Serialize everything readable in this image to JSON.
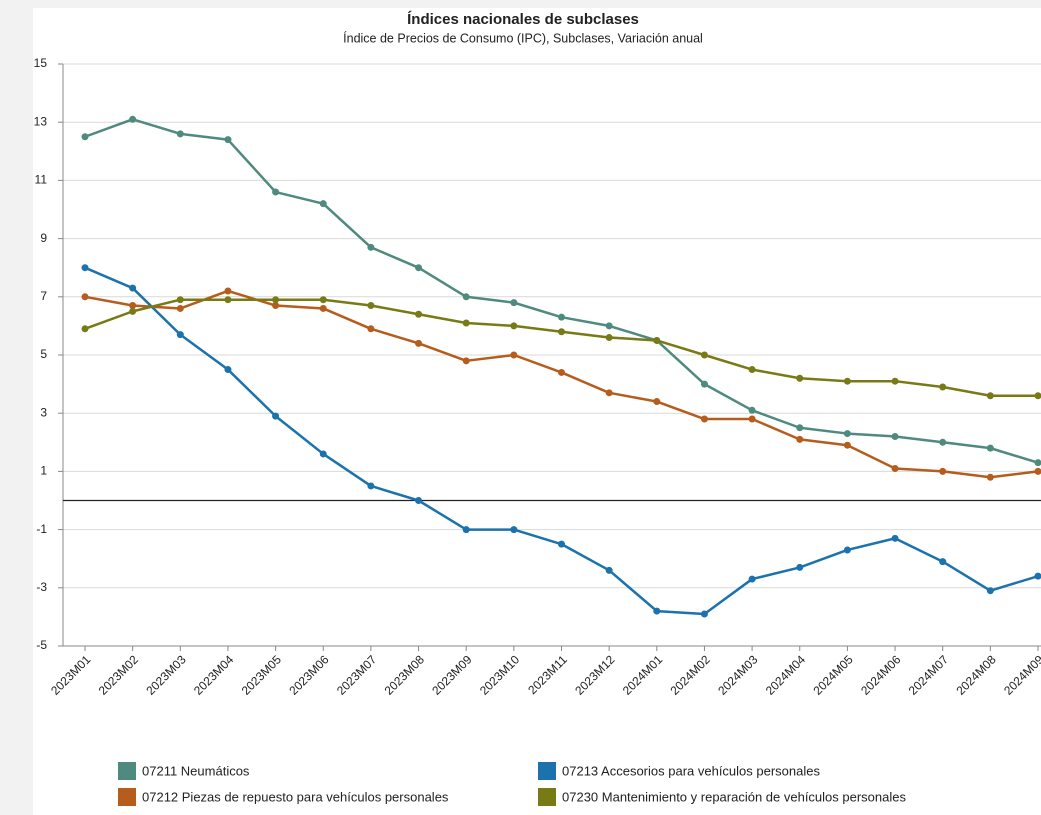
{
  "chart_data": {
    "type": "line",
    "title": "Índices nacionales de subclases",
    "subtitle": "Índice de Precios de Consumo (IPC), Subclases, Variación anual",
    "categories": [
      "2023M01",
      "2023M02",
      "2023M03",
      "2023M04",
      "2023M05",
      "2023M06",
      "2023M07",
      "2023M08",
      "2023M09",
      "2023M10",
      "2023M11",
      "2023M12",
      "2024M01",
      "2024M02",
      "2024M03",
      "2024M04",
      "2024M05",
      "2024M06",
      "2024M07",
      "2024M08",
      "2024M09"
    ],
    "series": [
      {
        "name": "07211 Neumáticos",
        "color": "#4f8a7e",
        "values": [
          12.5,
          13.1,
          12.6,
          12.4,
          10.6,
          10.2,
          8.7,
          8.0,
          7.0,
          6.8,
          6.3,
          6.0,
          5.5,
          4.0,
          3.1,
          2.5,
          2.3,
          2.2,
          2.0,
          1.8,
          1.3
        ]
      },
      {
        "name": "07213 Accesorios para vehículos personales",
        "color": "#1b72ad",
        "values": [
          8.0,
          7.3,
          5.7,
          4.5,
          2.9,
          1.6,
          0.5,
          0.0,
          -1.0,
          -1.0,
          -1.5,
          -2.4,
          -3.8,
          -3.9,
          -2.7,
          -2.3,
          -1.7,
          -1.3,
          -2.1,
          -3.1,
          -2.6
        ]
      },
      {
        "name": "07212 Piezas de repuesto para vehículos personales",
        "color": "#b65c1d",
        "values": [
          7.0,
          6.7,
          6.6,
          7.2,
          6.7,
          6.6,
          5.9,
          5.4,
          4.8,
          5.0,
          4.4,
          3.7,
          3.4,
          2.8,
          2.8,
          2.1,
          1.9,
          1.1,
          1.0,
          0.8,
          1.0
        ]
      },
      {
        "name": "07230 Mantenimiento y reparación de vehículos personales",
        "color": "#787a16",
        "values": [
          5.9,
          6.5,
          6.9,
          6.9,
          6.9,
          6.9,
          6.7,
          6.4,
          6.1,
          6.0,
          5.8,
          5.6,
          5.5,
          5.0,
          4.5,
          4.2,
          4.1,
          4.1,
          3.9,
          3.6,
          3.6
        ]
      }
    ],
    "ylim": [
      -5,
      15
    ],
    "yticks": [
      15,
      13,
      11,
      9,
      7,
      5,
      3,
      1,
      -1,
      -3,
      -5
    ],
    "reference_line": 0,
    "grid": true,
    "legend": "bottom"
  }
}
